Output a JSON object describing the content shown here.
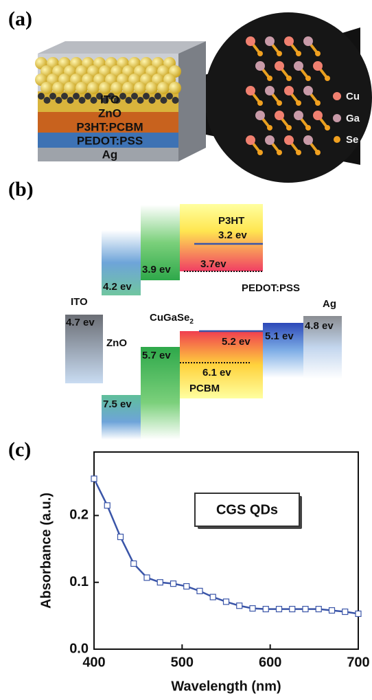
{
  "panel_labels": [
    "(a)",
    "(b)",
    "(c)"
  ],
  "device": {
    "layers": [
      "ITO",
      "ZnO",
      "P3HT:PCBM",
      "PEDOT:PSS",
      "Ag"
    ],
    "legend": [
      "Cu",
      "Ga",
      "Se"
    ]
  },
  "energy": {
    "materials": {
      "ito": "ITO",
      "zno": "ZnO",
      "cgs": "CuGaSe",
      "cgs_sub": "2",
      "p3ht": "P3HT",
      "pcbm": "PCBM",
      "pedot": "PEDOT:PSS",
      "ag": "Ag"
    },
    "levels": {
      "ito": "4.7 ev",
      "zno_top": "4.2 ev",
      "zno_bottom": "7.5 ev",
      "cgs_top": "3.9 ev",
      "cgs_bottom": "5.7 ev",
      "p3ht_lumo": "3.2 ev",
      "pcbm_lumo": "3.7ev",
      "p3ht_homo": "5.2 ev",
      "pcbm_homo": "6.1 ev",
      "pedot": "5.1 ev",
      "ag": "4.8 ev"
    }
  },
  "chart_data": {
    "type": "line",
    "x_label": "Wavelength (nm)",
    "y_label": "Absorbance (a.u.)",
    "annotation": "CGS QDs",
    "x": [
      400,
      415,
      430,
      445,
      460,
      475,
      490,
      505,
      520,
      535,
      550,
      565,
      580,
      595,
      610,
      625,
      640,
      655,
      670,
      685,
      700
    ],
    "series": [
      {
        "name": "CGS QDs",
        "color": "#3a55a8",
        "values": [
          0.255,
          0.215,
          0.168,
          0.128,
          0.107,
          0.1,
          0.098,
          0.094,
          0.087,
          0.078,
          0.071,
          0.065,
          0.061,
          0.06,
          0.06,
          0.06,
          0.06,
          0.06,
          0.058,
          0.056,
          0.053
        ]
      }
    ],
    "xlim": [
      400,
      700
    ],
    "ylim": [
      0,
      0.295
    ],
    "xticks": [
      400,
      500,
      600,
      700
    ],
    "yticks": [
      {
        "value": 0,
        "label": "0.0"
      },
      0.1,
      0.2
    ]
  }
}
